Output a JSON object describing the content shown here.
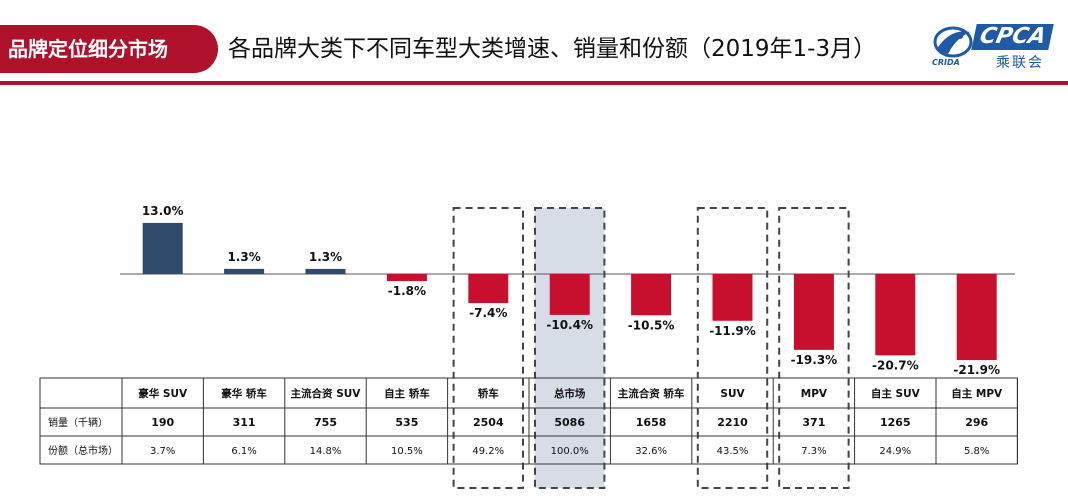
{
  "header": {
    "section_tab": "品牌定位细分市场",
    "title": "各品牌大类下不同车型大类增速、销量和份额（2019年1-3月）",
    "logo_text": "CPCA",
    "logo_subtext": "乘联会",
    "logo_emblem_text": "CRIDA"
  },
  "colors": {
    "positive": "#2f4a6b",
    "negative": "#c8102e",
    "highlight_fill": "#c9d2df",
    "brand_red": "#b0112a"
  },
  "chart_data": {
    "type": "bar",
    "categories": [
      "豪华 SUV",
      "豪华 轿车",
      "主流合资 SUV",
      "自主 轿车",
      "轿车",
      "总市场",
      "主流合资 轿车",
      "SUV",
      "MPV",
      "自主 SUV",
      "自主 MPV"
    ],
    "values": [
      13.0,
      1.3,
      1.3,
      -1.8,
      -7.4,
      -10.4,
      -10.5,
      -11.9,
      -19.3,
      -20.7,
      -21.9
    ],
    "value_labels": [
      "13.0%",
      "1.3%",
      "1.3%",
      "-1.8%",
      "-7.4%",
      "-10.4%",
      "-10.5%",
      "-11.9%",
      "-19.3%",
      "-20.7%",
      "-21.9%"
    ],
    "highlighted": [
      "轿车",
      "总市场",
      "SUV",
      "MPV"
    ],
    "filled_highlight": "总市场",
    "table": {
      "rows": [
        {
          "label": "销量（千辆）",
          "values": [
            "190",
            "311",
            "755",
            "535",
            "2504",
            "5086",
            "1658",
            "2210",
            "371",
            "1265",
            "296"
          ]
        },
        {
          "label": "份额（总市场）",
          "values": [
            "3.7%",
            "6.1%",
            "14.8%",
            "10.5%",
            "49.2%",
            "100.0%",
            "32.6%",
            "43.5%",
            "7.3%",
            "24.9%",
            "5.8%"
          ]
        }
      ]
    }
  }
}
